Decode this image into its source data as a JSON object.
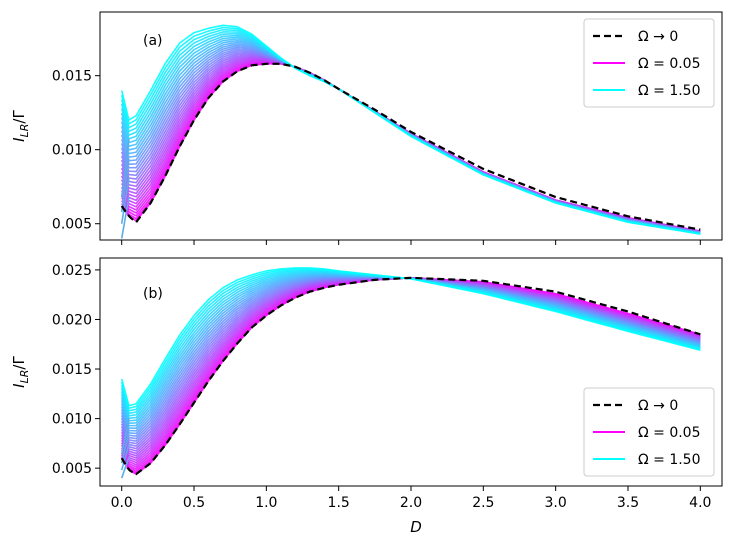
{
  "chart_data": [
    {
      "type": "line",
      "panel_label": "(a)",
      "xlabel": "D",
      "ylabel_main": "I",
      "ylabel_sub": "LR",
      "ylabel_tail": "/Γ",
      "xlim": [
        -0.15,
        4.15
      ],
      "ylim": [
        0.0039,
        0.0193
      ],
      "xticks": [
        0.0,
        0.5,
        1.0,
        1.5,
        2.0,
        2.5,
        3.0,
        3.5,
        4.0
      ],
      "xtick_labels": [
        "0.0",
        "0.5",
        "1.0",
        "1.5",
        "2.0",
        "2.5",
        "3.0",
        "3.5",
        "4.0"
      ],
      "show_xtick_labels": false,
      "yticks": [
        0.005,
        0.01,
        0.015
      ],
      "ytick_labels": [
        "0.005",
        "0.010",
        "0.015"
      ],
      "legend_position": "top-right",
      "legend": [
        {
          "label": "Ω → 0",
          "color": "#000000",
          "style": "dashed"
        },
        {
          "label": "Ω = 0.05",
          "color": "#ff00ff",
          "style": "solid"
        },
        {
          "label": "Ω = 1.50",
          "color": "#00ffff",
          "style": "solid"
        }
      ],
      "omega_range": [
        0.05,
        1.5
      ],
      "series_count": 30,
      "series_x": [
        0.0,
        0.05,
        0.1,
        0.2,
        0.3,
        0.4,
        0.5,
        0.6,
        0.7,
        0.8,
        0.9,
        1.0,
        1.1,
        1.2,
        1.3,
        1.4,
        1.5,
        1.75,
        2.0,
        2.5,
        3.0,
        3.5,
        4.0
      ],
      "series_low": [
        0.0062,
        0.0055,
        0.0052,
        0.0064,
        0.0082,
        0.0102,
        0.012,
        0.0135,
        0.0146,
        0.0153,
        0.0157,
        0.0158,
        0.0158,
        0.0156,
        0.0152,
        0.0147,
        0.0141,
        0.0126,
        0.0111,
        0.0085,
        0.0066,
        0.0054,
        0.0045
      ],
      "series_high": [
        0.014,
        0.012,
        0.0123,
        0.014,
        0.0158,
        0.0172,
        0.0179,
        0.0182,
        0.0184,
        0.0183,
        0.0178,
        0.017,
        0.0162,
        0.0155,
        0.015,
        0.0146,
        0.0141,
        0.0125,
        0.0109,
        0.0083,
        0.0064,
        0.0051,
        0.0043
      ],
      "series_low_at_zero_variants": [
        0.004,
        0.005,
        0.0058,
        0.0068
      ],
      "reference": {
        "label": "Ω → 0",
        "x": [
          0.0,
          0.05,
          0.1,
          0.2,
          0.3,
          0.4,
          0.5,
          0.6,
          0.7,
          0.8,
          0.9,
          1.0,
          1.1,
          1.2,
          1.3,
          1.4,
          1.5,
          1.75,
          2.0,
          2.5,
          3.0,
          3.5,
          4.0
        ],
        "y": [
          0.0062,
          0.0055,
          0.0051,
          0.0064,
          0.0082,
          0.0102,
          0.012,
          0.0135,
          0.0146,
          0.0153,
          0.0157,
          0.0158,
          0.0158,
          0.0156,
          0.0152,
          0.0147,
          0.0141,
          0.0127,
          0.0112,
          0.0087,
          0.0068,
          0.0055,
          0.0046
        ]
      }
    },
    {
      "type": "line",
      "panel_label": "(b)",
      "xlabel": "D",
      "ylabel_main": "I",
      "ylabel_sub": "LR",
      "ylabel_tail": "/Γ",
      "xlim": [
        -0.15,
        4.15
      ],
      "ylim": [
        0.0032,
        0.0262
      ],
      "xticks": [
        0.0,
        0.5,
        1.0,
        1.5,
        2.0,
        2.5,
        3.0,
        3.5,
        4.0
      ],
      "xtick_labels": [
        "0.0",
        "0.5",
        "1.0",
        "1.5",
        "2.0",
        "2.5",
        "3.0",
        "3.5",
        "4.0"
      ],
      "show_xtick_labels": true,
      "yticks": [
        0.005,
        0.01,
        0.015,
        0.02,
        0.025
      ],
      "ytick_labels": [
        "0.005",
        "0.010",
        "0.015",
        "0.020",
        "0.025"
      ],
      "legend_position": "bottom-right",
      "legend": [
        {
          "label": "Ω → 0",
          "color": "#000000",
          "style": "dashed"
        },
        {
          "label": "Ω = 0.05",
          "color": "#ff00ff",
          "style": "solid"
        },
        {
          "label": "Ω = 1.50",
          "color": "#00ffff",
          "style": "solid"
        }
      ],
      "omega_range": [
        0.05,
        1.5
      ],
      "series_count": 30,
      "series_x": [
        0.0,
        0.05,
        0.1,
        0.2,
        0.3,
        0.4,
        0.5,
        0.6,
        0.7,
        0.8,
        0.9,
        1.0,
        1.1,
        1.2,
        1.3,
        1.4,
        1.5,
        1.75,
        2.0,
        2.5,
        3.0,
        3.5,
        4.0
      ],
      "series_low": [
        0.006,
        0.0048,
        0.0044,
        0.0055,
        0.0073,
        0.0094,
        0.0116,
        0.0138,
        0.0158,
        0.0176,
        0.0192,
        0.0204,
        0.0214,
        0.0222,
        0.0228,
        0.0232,
        0.0235,
        0.024,
        0.0242,
        0.0238,
        0.0226,
        0.0206,
        0.0185
      ],
      "series_high": [
        0.014,
        0.0113,
        0.0115,
        0.0135,
        0.016,
        0.0184,
        0.0204,
        0.022,
        0.0232,
        0.024,
        0.0245,
        0.0249,
        0.0251,
        0.0252,
        0.0252,
        0.0251,
        0.0249,
        0.0245,
        0.0241,
        0.0226,
        0.0208,
        0.0188,
        0.0169
      ],
      "series_low_at_zero_variants": [
        0.004,
        0.0048,
        0.0055,
        0.0064
      ],
      "reference": {
        "label": "Ω → 0",
        "x": [
          0.0,
          0.05,
          0.1,
          0.2,
          0.3,
          0.4,
          0.5,
          0.6,
          0.7,
          0.8,
          0.9,
          1.0,
          1.1,
          1.2,
          1.3,
          1.4,
          1.5,
          1.75,
          2.0,
          2.5,
          3.0,
          3.5,
          4.0
        ],
        "y": [
          0.006,
          0.0048,
          0.0044,
          0.0055,
          0.0073,
          0.0094,
          0.0116,
          0.0138,
          0.0158,
          0.0176,
          0.0192,
          0.0204,
          0.0214,
          0.0222,
          0.0228,
          0.0232,
          0.0235,
          0.024,
          0.0242,
          0.0239,
          0.0228,
          0.0208,
          0.0185
        ]
      }
    }
  ]
}
